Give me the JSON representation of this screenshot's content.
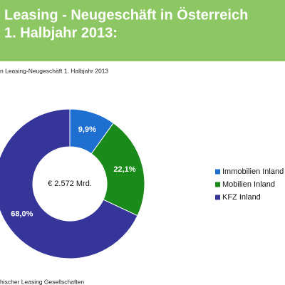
{
  "chart_data": {
    "type": "pie",
    "donut": true,
    "title": [
      "Leasing - Neugeschäft in Österreich",
      "1. Halbjahr 2013:"
    ],
    "subtitle": "n Leasing-Neugeschäft 1. Halbjahr 2013",
    "center_label": "€ 2.572 Mrd.",
    "categories": [
      "Immobilien Inland",
      "Mobilien Inland",
      "KFZ Inland"
    ],
    "values": [
      9.9,
      22.1,
      68.0
    ],
    "value_labels": [
      "9,9%",
      "22,1%",
      "68,0%"
    ],
    "colors": [
      "#1f6fd0",
      "#1a8a1a",
      "#36359a"
    ],
    "legend": "right",
    "source": "hischer Leasing Gesellschaften"
  }
}
